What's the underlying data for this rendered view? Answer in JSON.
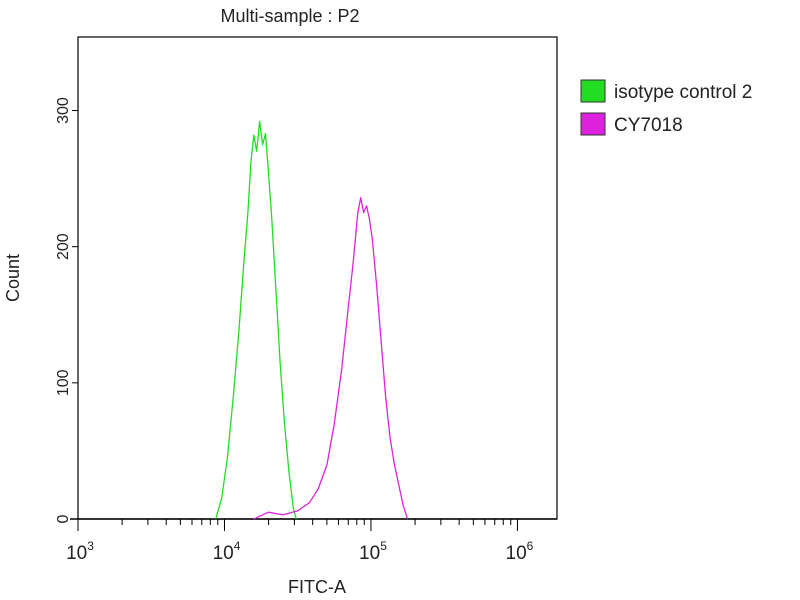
{
  "chart_data": {
    "type": "line",
    "title": "Multi-sample : P2",
    "xlabel": "FITC-A",
    "ylabel": "Count",
    "xscale": "log",
    "xlim_log10": [
      3,
      6.27
    ],
    "ylim": [
      0,
      354
    ],
    "x_ticks": [
      {
        "base": "10",
        "exp": "3"
      },
      {
        "base": "10",
        "exp": "4"
      },
      {
        "base": "10",
        "exp": "5"
      },
      {
        "base": "10",
        "exp": "6"
      }
    ],
    "y_ticks": [
      0,
      100,
      200,
      300
    ],
    "grid": false,
    "legend_position": "right",
    "series": [
      {
        "name": "isotype control 2",
        "color": "#22dd22",
        "log10_x": [
          3.94,
          3.98,
          4.02,
          4.06,
          4.1,
          4.13,
          4.16,
          4.18,
          4.2,
          4.22,
          4.24,
          4.26,
          4.28,
          4.3,
          4.32,
          4.35,
          4.38,
          4.41,
          4.44,
          4.47,
          4.49
        ],
        "y": [
          0,
          15,
          45,
          90,
          140,
          185,
          225,
          262,
          282,
          270,
          292,
          275,
          283,
          255,
          225,
          170,
          115,
          70,
          35,
          8,
          0
        ]
      },
      {
        "name": "CY7018",
        "color": "#dd22dd",
        "log10_x": [
          4.2,
          4.3,
          4.4,
          4.5,
          4.58,
          4.64,
          4.7,
          4.75,
          4.8,
          4.84,
          4.88,
          4.91,
          4.93,
          4.95,
          4.97,
          4.99,
          5.01,
          5.04,
          5.07,
          5.1,
          5.13,
          5.16,
          5.19,
          5.22,
          5.25
        ],
        "y": [
          0,
          5,
          3,
          6,
          12,
          22,
          40,
          70,
          110,
          150,
          190,
          225,
          236,
          225,
          230,
          220,
          205,
          170,
          130,
          90,
          60,
          40,
          25,
          10,
          0
        ]
      }
    ]
  }
}
